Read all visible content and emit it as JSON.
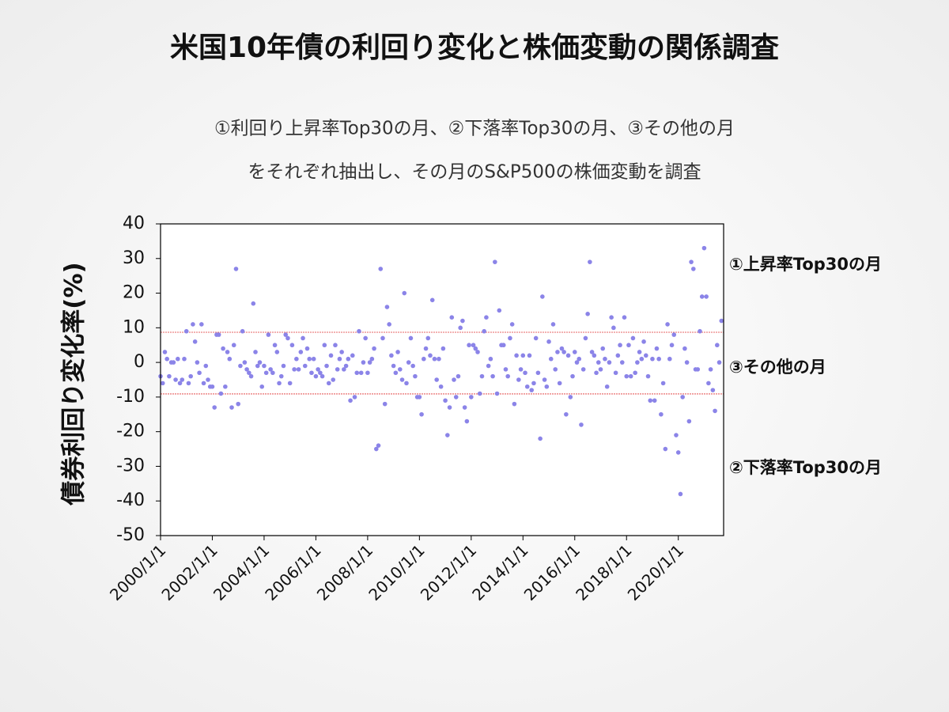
{
  "chart_data": {
    "type": "scatter",
    "title": "米国10年債の利回り変化と株価変動の関係調査",
    "subtitle_lines": [
      "①利回り上昇率Top30の月、②下落率Top30の月、③その他の月",
      "をそれぞれ抽出し、その月のS&P500の株価変動を調査"
    ],
    "ylabel": "債券利回り変化率(%)",
    "annotations": [
      "①上昇率Top30の月",
      "③その他の月",
      "②下落率Top30の月"
    ],
    "reference_lines": [
      8.7,
      -9.1
    ],
    "reference_color": "#e03030",
    "color": "#8b84e8",
    "ylim": [
      -50,
      40
    ],
    "yticks": [
      -50,
      -40,
      -30,
      -20,
      -10,
      0,
      10,
      20,
      30,
      40
    ],
    "xlim": [
      "2000/1/1",
      "2021/10/1"
    ],
    "xticks": [
      "2000/1/1",
      "2002/1/1",
      "2004/1/1",
      "2006/1/1",
      "2008/1/1",
      "2010/1/1",
      "2012/1/1",
      "2014/1/1",
      "2016/1/1",
      "2018/1/1",
      "2020/1/1"
    ],
    "x": [
      "2000/1/1",
      "2000/2/1",
      "2000/3/1",
      "2000/4/1",
      "2000/5/1",
      "2000/6/1",
      "2000/7/1",
      "2000/8/1",
      "2000/9/1",
      "2000/10/1",
      "2000/11/1",
      "2000/12/1",
      "2001/1/1",
      "2001/2/1",
      "2001/3/1",
      "2001/4/1",
      "2001/5/1",
      "2001/6/1",
      "2001/7/1",
      "2001/8/1",
      "2001/9/1",
      "2001/10/1",
      "2001/11/1",
      "2001/12/1",
      "2002/1/1",
      "2002/2/1",
      "2002/3/1",
      "2002/4/1",
      "2002/5/1",
      "2002/6/1",
      "2002/7/1",
      "2002/8/1",
      "2002/9/1",
      "2002/10/1",
      "2002/11/1",
      "2002/12/1",
      "2003/1/1",
      "2003/2/1",
      "2003/3/1",
      "2003/4/1",
      "2003/5/1",
      "2003/6/1",
      "2003/7/1",
      "2003/8/1",
      "2003/9/1",
      "2003/10/1",
      "2003/11/1",
      "2003/12/1",
      "2004/1/1",
      "2004/2/1",
      "2004/3/1",
      "2004/4/1",
      "2004/5/1",
      "2004/6/1",
      "2004/7/1",
      "2004/8/1",
      "2004/9/1",
      "2004/10/1",
      "2004/11/1",
      "2004/12/1",
      "2005/1/1",
      "2005/2/1",
      "2005/3/1",
      "2005/4/1",
      "2005/5/1",
      "2005/6/1",
      "2005/7/1",
      "2005/8/1",
      "2005/9/1",
      "2005/10/1",
      "2005/11/1",
      "2005/12/1",
      "2006/1/1",
      "2006/2/1",
      "2006/3/1",
      "2006/4/1",
      "2006/5/1",
      "2006/6/1",
      "2006/7/1",
      "2006/8/1",
      "2006/9/1",
      "2006/10/1",
      "2006/11/1",
      "2006/12/1",
      "2007/1/1",
      "2007/2/1",
      "2007/3/1",
      "2007/4/1",
      "2007/5/1",
      "2007/6/1",
      "2007/7/1",
      "2007/8/1",
      "2007/9/1",
      "2007/10/1",
      "2007/11/1",
      "2007/12/1",
      "2008/1/1",
      "2008/2/1",
      "2008/3/1",
      "2008/4/1",
      "2008/5/1",
      "2008/6/1",
      "2008/7/1",
      "2008/8/1",
      "2008/9/1",
      "2008/10/1",
      "2008/11/1",
      "2008/12/1",
      "2009/1/1",
      "2009/2/1",
      "2009/3/1",
      "2009/4/1",
      "2009/5/1",
      "2009/6/1",
      "2009/7/1",
      "2009/8/1",
      "2009/9/1",
      "2009/10/1",
      "2009/11/1",
      "2009/12/1",
      "2010/1/1",
      "2010/2/1",
      "2010/3/1",
      "2010/4/1",
      "2010/5/1",
      "2010/6/1",
      "2010/7/1",
      "2010/8/1",
      "2010/9/1",
      "2010/10/1",
      "2010/11/1",
      "2010/12/1",
      "2011/1/1",
      "2011/2/1",
      "2011/3/1",
      "2011/4/1",
      "2011/5/1",
      "2011/6/1",
      "2011/7/1",
      "2011/8/1",
      "2011/9/1",
      "2011/10/1",
      "2011/11/1",
      "2011/12/1",
      "2012/1/1",
      "2012/2/1",
      "2012/3/1",
      "2012/4/1",
      "2012/5/1",
      "2012/6/1",
      "2012/7/1",
      "2012/8/1",
      "2012/9/1",
      "2012/10/1",
      "2012/11/1",
      "2012/12/1",
      "2013/1/1",
      "2013/2/1",
      "2013/3/1",
      "2013/4/1",
      "2013/5/1",
      "2013/6/1",
      "2013/7/1",
      "2013/8/1",
      "2013/9/1",
      "2013/10/1",
      "2013/11/1",
      "2013/12/1",
      "2014/1/1",
      "2014/2/1",
      "2014/3/1",
      "2014/4/1",
      "2014/5/1",
      "2014/6/1",
      "2014/7/1",
      "2014/8/1",
      "2014/9/1",
      "2014/10/1",
      "2014/11/1",
      "2014/12/1",
      "2015/1/1",
      "2015/2/1",
      "2015/3/1",
      "2015/4/1",
      "2015/5/1",
      "2015/6/1",
      "2015/7/1",
      "2015/8/1",
      "2015/9/1",
      "2015/10/1",
      "2015/11/1",
      "2015/12/1",
      "2016/1/1",
      "2016/2/1",
      "2016/3/1",
      "2016/4/1",
      "2016/5/1",
      "2016/6/1",
      "2016/7/1",
      "2016/8/1",
      "2016/9/1",
      "2016/10/1",
      "2016/11/1",
      "2016/12/1",
      "2017/1/1",
      "2017/2/1",
      "2017/3/1",
      "2017/4/1",
      "2017/5/1",
      "2017/6/1",
      "2017/7/1",
      "2017/8/1",
      "2017/9/1",
      "2017/10/1",
      "2017/11/1",
      "2017/12/1",
      "2018/1/1",
      "2018/2/1",
      "2018/3/1",
      "2018/4/1",
      "2018/5/1",
      "2018/6/1",
      "2018/7/1",
      "2018/8/1",
      "2018/9/1",
      "2018/10/1",
      "2018/11/1",
      "2018/12/1",
      "2019/1/1",
      "2019/2/1",
      "2019/3/1",
      "2019/4/1",
      "2019/5/1",
      "2019/6/1",
      "2019/7/1",
      "2019/8/1",
      "2019/9/1",
      "2019/10/1",
      "2019/11/1",
      "2019/12/1",
      "2020/1/1",
      "2020/2/1",
      "2020/3/1",
      "2020/4/1",
      "2020/5/1",
      "2020/6/1",
      "2020/7/1",
      "2020/8/1",
      "2020/9/1",
      "2020/10/1",
      "2020/11/1",
      "2020/12/1",
      "2021/1/1",
      "2021/2/1",
      "2021/3/1",
      "2021/4/1",
      "2021/5/1",
      "2021/6/1",
      "2021/7/1",
      "2021/8/1",
      "2021/9/1"
    ],
    "values": [
      -4,
      -6,
      3,
      1,
      -4,
      0,
      0,
      -5,
      1,
      -6,
      -5,
      1,
      9,
      -6,
      -4,
      11,
      6,
      0,
      -3,
      11,
      -6,
      -1,
      -5,
      -7,
      -7,
      -13,
      8,
      8,
      -9,
      4,
      -7,
      3,
      1,
      -13,
      5,
      27,
      -12,
      -1,
      9,
      0,
      -2,
      -3,
      -4,
      17,
      3,
      -1,
      0,
      -7,
      -1,
      -3,
      8,
      -2,
      -3,
      5,
      3,
      -6,
      -4,
      -1,
      8,
      7,
      -6,
      5,
      -2,
      1,
      -2,
      3,
      7,
      -1,
      4,
      1,
      -3,
      1,
      -4,
      -2,
      -3,
      -4,
      5,
      -1,
      -6,
      2,
      -5,
      5,
      -2,
      1,
      3,
      -2,
      -1,
      1,
      -11,
      2,
      -10,
      -3,
      9,
      -3,
      0,
      7,
      -3,
      0,
      1,
      4,
      -25,
      -24,
      27,
      7,
      -12,
      16,
      11,
      2,
      -1,
      -3,
      3,
      -2,
      -5,
      20,
      -6,
      0,
      7,
      -1,
      -4,
      -10,
      -10,
      -15,
      1,
      4,
      7,
      2,
      18,
      1,
      -5,
      1,
      -7,
      4,
      -11,
      -21,
      -13,
      13,
      -5,
      -10,
      -4,
      10,
      12,
      -13,
      -17,
      5,
      -10,
      5,
      4,
      3,
      -9,
      -4,
      9,
      13,
      -1,
      1,
      -4,
      29,
      -9,
      15,
      5,
      5,
      -2,
      -4,
      7,
      11,
      -12,
      2,
      -5,
      -2,
      2,
      -3,
      -7,
      2,
      -8,
      -6,
      7,
      -3,
      -22,
      19,
      -5,
      -7,
      6,
      1,
      11,
      -2,
      3,
      -6,
      4,
      3,
      -15,
      2,
      -10,
      -4,
      3,
      0,
      1,
      -18,
      -2,
      7,
      14,
      29,
      3,
      2,
      -3,
      0,
      -2,
      4,
      1,
      -7,
      0,
      13,
      10,
      -3,
      2,
      5,
      0,
      13,
      -4,
      5,
      -4,
      7,
      -3,
      0,
      3,
      1,
      6,
      2,
      -4,
      -11,
      1,
      -11,
      4,
      1,
      -15,
      -6,
      -25,
      11,
      1,
      5,
      8,
      -21,
      -26,
      -38,
      -10,
      4,
      0,
      -17,
      29,
      27,
      -2,
      -2,
      9,
      19,
      33,
      19,
      -6,
      -2,
      -8,
      -14,
      5,
      0,
      12
    ]
  }
}
